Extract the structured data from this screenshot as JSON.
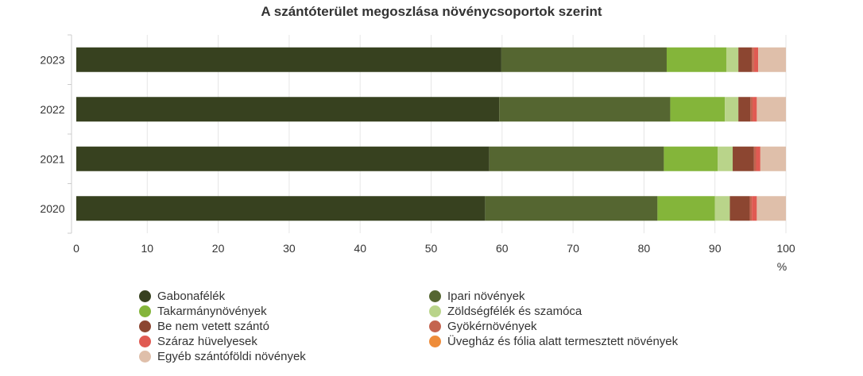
{
  "chart_data": {
    "type": "bar",
    "orientation": "horizontal",
    "stacked": true,
    "title": "A szántóterület megoszlása növénycsoportok szerint",
    "xlabel": "%",
    "xlim": [
      0,
      100
    ],
    "xticks": [
      "0",
      "10",
      "20",
      "30",
      "40",
      "50",
      "60",
      "70",
      "80",
      "90",
      "100"
    ],
    "categories": [
      "2023",
      "2022",
      "2021",
      "2020"
    ],
    "grid": "vertical",
    "legend_position": "bottom",
    "series": [
      {
        "name": "Gabonafélék",
        "color": "#37411f",
        "values": [
          59.9,
          59.6,
          58.2,
          57.6
        ]
      },
      {
        "name": "Ipari növények",
        "color": "#556631",
        "values": [
          23.3,
          24.1,
          24.6,
          24.3
        ]
      },
      {
        "name": "Takarmánynövények",
        "color": "#84b53a",
        "values": [
          8.4,
          7.7,
          7.6,
          8.1
        ]
      },
      {
        "name": "Zöldségfélék és szamóca",
        "color": "#b9d48a",
        "values": [
          1.7,
          1.9,
          2.1,
          2.1
        ]
      },
      {
        "name": "Be nem vetett szántó",
        "color": "#8c4631",
        "values": [
          1.9,
          1.7,
          3.0,
          2.8
        ]
      },
      {
        "name": "Gyökérnövények",
        "color": "#c4644f",
        "values": [
          0.3,
          0.3,
          0.3,
          0.3
        ]
      },
      {
        "name": "Száraz hüvelyesek",
        "color": "#e05a52",
        "values": [
          0.6,
          0.6,
          0.6,
          0.7
        ]
      },
      {
        "name": "Üvegház és fólia alatt termesztett növények",
        "color": "#ee8c3a",
        "values": [
          0.0,
          0.0,
          0.0,
          0.0
        ]
      },
      {
        "name": "Egyéb szántóföldi növények",
        "color": "#dfbfaa",
        "values": [
          3.9,
          4.1,
          3.6,
          4.1
        ]
      }
    ],
    "axis_color": "#cccccc",
    "grid_color": "#e6e6e6"
  }
}
